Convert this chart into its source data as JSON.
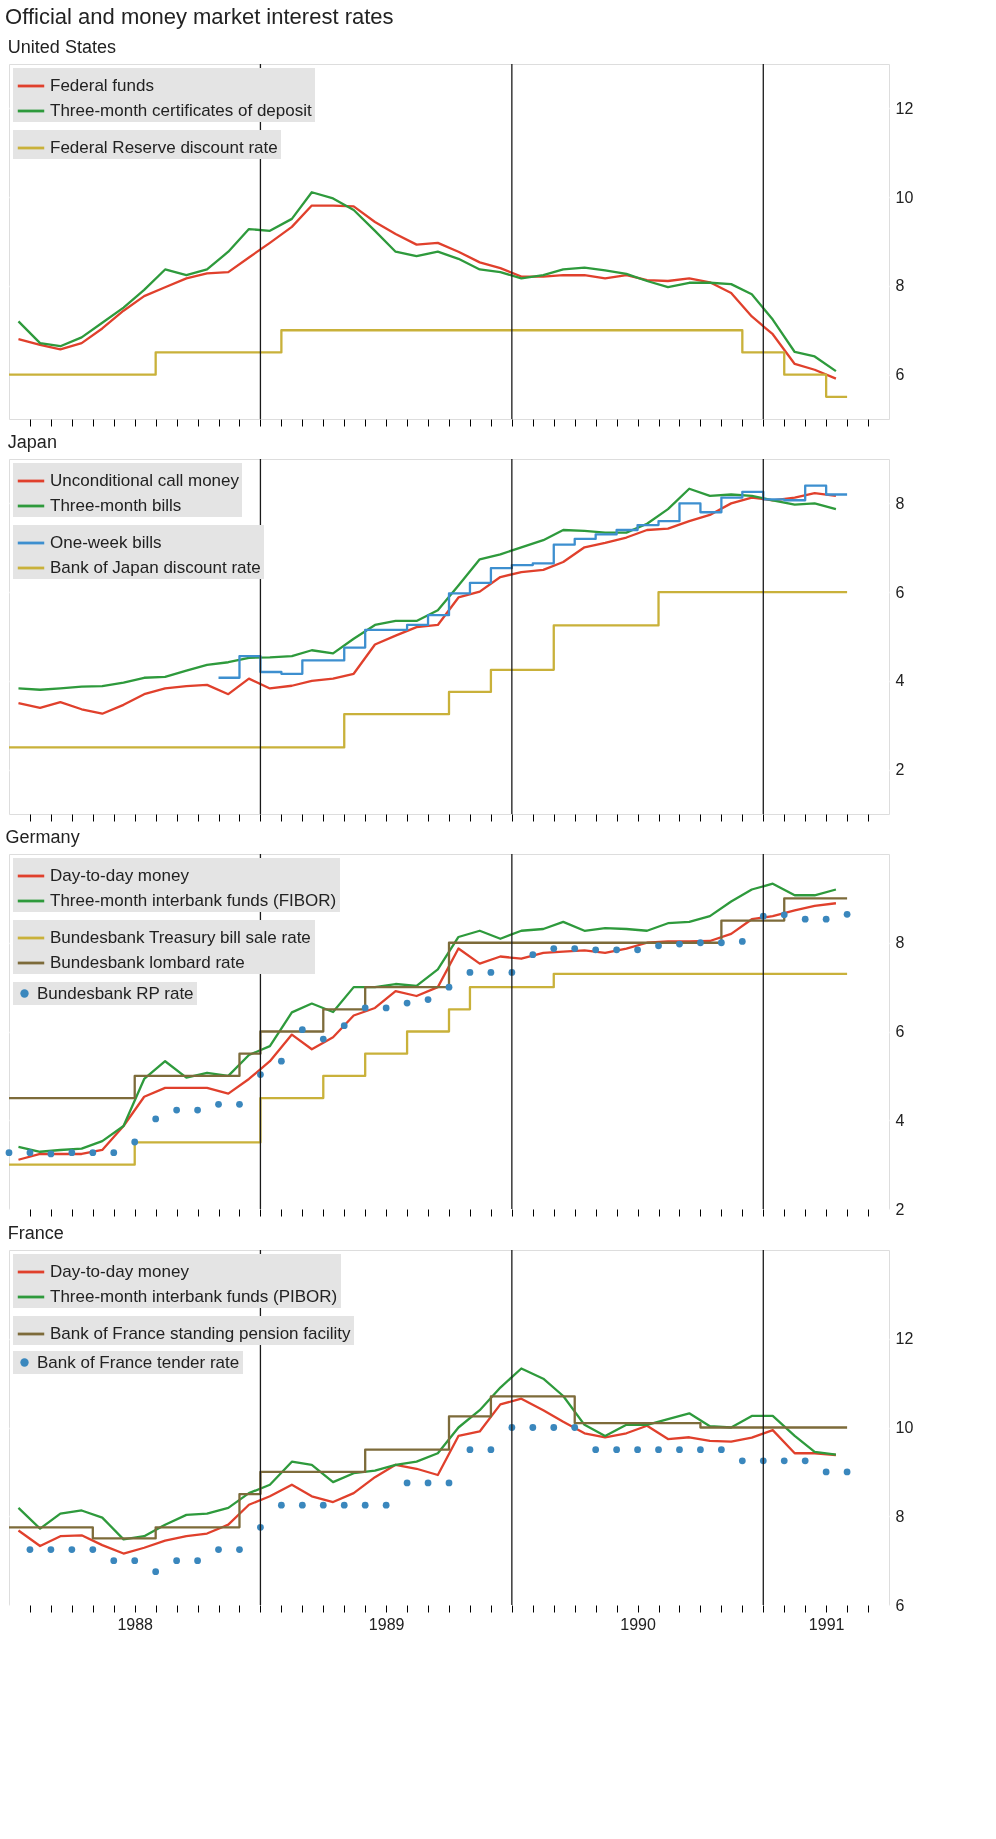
{
  "chart_data": [
    {
      "type": "line",
      "title": "Official and money market interest rates",
      "subtitle": "United States",
      "legend": "top left",
      "grid": "y",
      "tick_labels": "y",
      "xlim": [
        "1988-01",
        "1991-07"
      ],
      "ylim": [
        5,
        13
      ],
      "yticks": [
        6,
        8,
        10,
        12
      ],
      "xticks": [
        {
          "value": "1988-02",
          "label": null
        },
        {
          "value": "1988-03",
          "label": null
        },
        {
          "value": "1988-04",
          "label": null
        },
        {
          "value": "1988-05",
          "label": null
        },
        {
          "value": "1988-06",
          "label": null
        },
        {
          "value": "1988-07",
          "label": null
        },
        {
          "value": "1988-08",
          "label": null
        },
        {
          "value": "1988-09",
          "label": null
        },
        {
          "value": "1988-10",
          "label": null
        },
        {
          "value": "1988-11",
          "label": null
        },
        {
          "value": "1988-12",
          "label": null
        },
        {
          "value": "1989-01",
          "label": null
        },
        {
          "value": "1989-02",
          "label": null
        },
        {
          "value": "1989-03",
          "label": null
        },
        {
          "value": "1989-04",
          "label": null
        },
        {
          "value": "1989-05",
          "label": null
        },
        {
          "value": "1989-06",
          "label": null
        },
        {
          "value": "1989-07",
          "label": null
        },
        {
          "value": "1989-08",
          "label": null
        },
        {
          "value": "1989-09",
          "label": null
        },
        {
          "value": "1989-10",
          "label": null
        },
        {
          "value": "1989-11",
          "label": null
        },
        {
          "value": "1989-12",
          "label": null
        },
        {
          "value": "1990-01",
          "label": null
        },
        {
          "value": "1990-02",
          "label": null
        },
        {
          "value": "1990-03",
          "label": null
        },
        {
          "value": "1990-04",
          "label": null
        },
        {
          "value": "1990-05",
          "label": null
        },
        {
          "value": "1990-06",
          "label": null
        },
        {
          "value": "1990-07",
          "label": null
        },
        {
          "value": "1990-08",
          "label": null
        },
        {
          "value": "1990-09",
          "label": null
        },
        {
          "value": "1990-10",
          "label": null
        },
        {
          "value": "1990-11",
          "label": null
        },
        {
          "value": "1990-12",
          "label": null
        },
        {
          "value": "1991-01",
          "label": null
        },
        {
          "value": "1991-02",
          "label": null
        },
        {
          "value": "1991-03",
          "label": null
        },
        {
          "value": "1991-04",
          "label": null
        },
        {
          "value": "1991-05",
          "label": null
        },
        {
          "value": "1991-06",
          "label": null
        }
      ],
      "ref_lines": [
        {
          "axis": "x",
          "value": "1989-01",
          "color": "#1a1a1a"
        },
        {
          "axis": "x",
          "value": "1990-01",
          "color": "#1a1a1a"
        },
        {
          "axis": "x",
          "value": "1991-01",
          "color": "#1a1a1a"
        }
      ],
      "x": [
        "1988-01-15",
        "1988-02-15",
        "1988-03-15",
        "1988-04-15",
        "1988-05-15",
        "1988-06-15",
        "1988-07-15",
        "1988-08-15",
        "1988-09-15",
        "1988-10-15",
        "1988-11-15",
        "1988-12-15",
        "1989-01-15",
        "1989-02-15",
        "1989-03-15",
        "1989-04-15",
        "1989-05-15",
        "1989-06-15",
        "1989-07-15",
        "1989-08-15",
        "1989-09-15",
        "1989-10-15",
        "1989-11-15",
        "1989-12-15",
        "1990-01-15",
        "1990-02-15",
        "1990-03-15",
        "1990-04-15",
        "1990-05-15",
        "1990-06-15",
        "1990-07-15",
        "1990-08-15",
        "1990-09-15",
        "1990-10-15",
        "1990-11-15",
        "1990-12-15",
        "1991-01-15",
        "1991-02-15",
        "1991-03-15",
        "1991-04-15"
      ],
      "series": [
        {
          "name": "Federal funds",
          "color": "#e0402c",
          "values": [
            6.8,
            6.67,
            6.57,
            6.71,
            7.04,
            7.44,
            7.77,
            7.97,
            8.17,
            8.28,
            8.31,
            8.64,
            8.97,
            9.33,
            9.81,
            9.81,
            9.79,
            9.44,
            9.17,
            8.93,
            8.97,
            8.77,
            8.53,
            8.4,
            8.21,
            8.21,
            8.24,
            8.24,
            8.17,
            8.24,
            8.13,
            8.11,
            8.17,
            8.08,
            7.84,
            7.31,
            6.91,
            6.24,
            6.11,
            5.91
          ]
        },
        {
          "name": "Three-month certificates of deposit",
          "color": "#2e9a3c",
          "values": [
            7.2,
            6.71,
            6.64,
            6.84,
            7.17,
            7.51,
            7.91,
            8.37,
            8.24,
            8.37,
            8.77,
            9.28,
            9.24,
            9.51,
            10.11,
            9.97,
            9.71,
            9.24,
            8.77,
            8.67,
            8.77,
            8.61,
            8.37,
            8.31,
            8.17,
            8.24,
            8.37,
            8.41,
            8.35,
            8.27,
            8.11,
            7.97,
            8.07,
            8.07,
            8.04,
            7.81,
            7.24,
            6.51,
            6.41,
            6.08
          ]
        },
        {
          "name": "Federal Reserve discount rate",
          "type": "step",
          "color": "#c9b13a",
          "x": [
            "1988-01",
            "1988-08",
            "1989-02",
            "1990-12",
            "1991-02",
            "1991-04",
            "1991-05"
          ],
          "values": [
            6.0,
            6.5,
            7.0,
            6.5,
            6.0,
            5.5,
            5.5
          ]
        }
      ]
    },
    {
      "type": "line",
      "title": "Japan",
      "legend": "top left",
      "grid": "y",
      "tick_labels": "y",
      "xlim": [
        "1988-01",
        "1991-07"
      ],
      "ylim": [
        1,
        9
      ],
      "yticks": [
        2,
        4,
        6,
        8
      ],
      "xticks": [
        {
          "value": "1988-02",
          "label": null
        },
        {
          "value": "1988-03",
          "label": null
        },
        {
          "value": "1988-04",
          "label": null
        },
        {
          "value": "1988-05",
          "label": null
        },
        {
          "value": "1988-06",
          "label": null
        },
        {
          "value": "1988-07",
          "label": null
        },
        {
          "value": "1988-08",
          "label": null
        },
        {
          "value": "1988-09",
          "label": null
        },
        {
          "value": "1988-10",
          "label": null
        },
        {
          "value": "1988-11",
          "label": null
        },
        {
          "value": "1988-12",
          "label": null
        },
        {
          "value": "1989-01",
          "label": null
        },
        {
          "value": "1989-02",
          "label": null
        },
        {
          "value": "1989-03",
          "label": null
        },
        {
          "value": "1989-04",
          "label": null
        },
        {
          "value": "1989-05",
          "label": null
        },
        {
          "value": "1989-06",
          "label": null
        },
        {
          "value": "1989-07",
          "label": null
        },
        {
          "value": "1989-08",
          "label": null
        },
        {
          "value": "1989-09",
          "label": null
        },
        {
          "value": "1989-10",
          "label": null
        },
        {
          "value": "1989-11",
          "label": null
        },
        {
          "value": "1989-12",
          "label": null
        },
        {
          "value": "1990-01",
          "label": null
        },
        {
          "value": "1990-02",
          "label": null
        },
        {
          "value": "1990-03",
          "label": null
        },
        {
          "value": "1990-04",
          "label": null
        },
        {
          "value": "1990-05",
          "label": null
        },
        {
          "value": "1990-06",
          "label": null
        },
        {
          "value": "1990-07",
          "label": null
        },
        {
          "value": "1990-08",
          "label": null
        },
        {
          "value": "1990-09",
          "label": null
        },
        {
          "value": "1990-10",
          "label": null
        },
        {
          "value": "1990-11",
          "label": null
        },
        {
          "value": "1990-12",
          "label": null
        },
        {
          "value": "1991-01",
          "label": null
        },
        {
          "value": "1991-02",
          "label": null
        },
        {
          "value": "1991-03",
          "label": null
        },
        {
          "value": "1991-04",
          "label": null
        },
        {
          "value": "1991-05",
          "label": null
        },
        {
          "value": "1991-06",
          "label": null
        }
      ],
      "ref_lines": [
        {
          "axis": "x",
          "value": "1989-01",
          "color": "#1a1a1a"
        },
        {
          "axis": "x",
          "value": "1990-01",
          "color": "#1a1a1a"
        },
        {
          "axis": "x",
          "value": "1991-01",
          "color": "#1a1a1a"
        }
      ],
      "x": [
        "1988-01-15",
        "1988-02-15",
        "1988-03-15",
        "1988-04-15",
        "1988-05-15",
        "1988-06-15",
        "1988-07-15",
        "1988-08-15",
        "1988-09-15",
        "1988-10-15",
        "1988-11-15",
        "1988-12-15",
        "1989-01-15",
        "1989-02-15",
        "1989-03-15",
        "1989-04-15",
        "1989-05-15",
        "1989-06-15",
        "1989-07-15",
        "1989-08-15",
        "1989-09-15",
        "1989-10-15",
        "1989-11-15",
        "1989-12-15",
        "1990-01-15",
        "1990-02-15",
        "1990-03-15",
        "1990-04-15",
        "1990-05-15",
        "1990-06-15",
        "1990-07-15",
        "1990-08-15",
        "1990-09-15",
        "1990-10-15",
        "1990-11-15",
        "1990-12-15",
        "1991-01-15",
        "1991-02-15",
        "1991-03-15",
        "1991-04-15"
      ],
      "series": [
        {
          "name": "Unconditional call money",
          "color": "#e0402c",
          "values": [
            3.5,
            3.39,
            3.52,
            3.36,
            3.26,
            3.46,
            3.7,
            3.83,
            3.88,
            3.91,
            3.7,
            4.05,
            3.83,
            3.89,
            4.0,
            4.05,
            4.16,
            4.82,
            5.02,
            5.21,
            5.26,
            5.88,
            6.01,
            6.34,
            6.45,
            6.5,
            6.68,
            7.01,
            7.11,
            7.23,
            7.4,
            7.43,
            7.6,
            7.74,
            8.0,
            8.13,
            8.07,
            8.13,
            8.23,
            8.17
          ]
        },
        {
          "name": "Three-month bills",
          "color": "#2e9a3c",
          "values": [
            3.83,
            3.8,
            3.83,
            3.87,
            3.88,
            3.96,
            4.07,
            4.09,
            4.23,
            4.36,
            4.42,
            4.52,
            4.53,
            4.56,
            4.69,
            4.62,
            4.95,
            5.26,
            5.35,
            5.35,
            5.59,
            6.15,
            6.74,
            6.85,
            7.01,
            7.17,
            7.4,
            7.38,
            7.34,
            7.34,
            7.54,
            7.87,
            8.33,
            8.17,
            8.2,
            8.17,
            8.07,
            7.97,
            8.0,
            7.87
          ]
        },
        {
          "name": "One-week bills",
          "type": "step",
          "color": "#3d8fcf",
          "x": [
            "1988-11",
            "1988-12",
            "1989-01",
            "1989-02",
            "1989-03",
            "1989-04",
            "1989-05",
            "1989-06",
            "1989-07",
            "1989-08",
            "1989-09",
            "1989-10",
            "1989-11",
            "1989-12",
            "1990-01",
            "1990-02",
            "1990-03",
            "1990-04",
            "1990-05",
            "1990-06",
            "1990-07",
            "1990-08",
            "1990-09",
            "1990-10",
            "1990-11",
            "1990-12",
            "1991-01",
            "1991-02",
            "1991-03",
            "1991-04",
            "1991-05"
          ],
          "values": [
            4.07,
            4.56,
            4.2,
            4.16,
            4.46,
            4.46,
            4.75,
            5.15,
            5.15,
            5.26,
            5.48,
            5.97,
            6.21,
            6.54,
            6.61,
            6.65,
            7.07,
            7.2,
            7.3,
            7.4,
            7.51,
            7.6,
            8.0,
            7.8,
            8.13,
            8.26,
            8.09,
            8.07,
            8.4,
            8.2,
            8.2
          ]
        },
        {
          "name": "Bank of Japan discount rate",
          "type": "step",
          "color": "#c9b13a",
          "x": [
            "1988-01",
            "1989-05",
            "1989-10",
            "1989-12",
            "1990-03",
            "1990-08",
            "1991-05"
          ],
          "values": [
            2.5,
            3.25,
            3.75,
            4.25,
            5.25,
            6.0,
            6.0
          ]
        }
      ]
    },
    {
      "type": "line",
      "title": "Germany",
      "legend": "top left",
      "grid": "y",
      "tick_labels": "y",
      "xlim": [
        "1988-01",
        "1991-07"
      ],
      "ylim": [
        2,
        10
      ],
      "yticks": [
        2,
        4,
        6,
        8
      ],
      "xticks": [
        {
          "value": "1988-02",
          "label": null
        },
        {
          "value": "1988-03",
          "label": null
        },
        {
          "value": "1988-04",
          "label": null
        },
        {
          "value": "1988-05",
          "label": null
        },
        {
          "value": "1988-06",
          "label": null
        },
        {
          "value": "1988-07",
          "label": null
        },
        {
          "value": "1988-08",
          "label": null
        },
        {
          "value": "1988-09",
          "label": null
        },
        {
          "value": "1988-10",
          "label": null
        },
        {
          "value": "1988-11",
          "label": null
        },
        {
          "value": "1988-12",
          "label": null
        },
        {
          "value": "1989-01",
          "label": null
        },
        {
          "value": "1989-02",
          "label": null
        },
        {
          "value": "1989-03",
          "label": null
        },
        {
          "value": "1989-04",
          "label": null
        },
        {
          "value": "1989-05",
          "label": null
        },
        {
          "value": "1989-06",
          "label": null
        },
        {
          "value": "1989-07",
          "label": null
        },
        {
          "value": "1989-08",
          "label": null
        },
        {
          "value": "1989-09",
          "label": null
        },
        {
          "value": "1989-10",
          "label": null
        },
        {
          "value": "1989-11",
          "label": null
        },
        {
          "value": "1989-12",
          "label": null
        },
        {
          "value": "1990-01",
          "label": null
        },
        {
          "value": "1990-02",
          "label": null
        },
        {
          "value": "1990-03",
          "label": null
        },
        {
          "value": "1990-04",
          "label": null
        },
        {
          "value": "1990-05",
          "label": null
        },
        {
          "value": "1990-06",
          "label": null
        },
        {
          "value": "1990-07",
          "label": null
        },
        {
          "value": "1990-08",
          "label": null
        },
        {
          "value": "1990-09",
          "label": null
        },
        {
          "value": "1990-10",
          "label": null
        },
        {
          "value": "1990-11",
          "label": null
        },
        {
          "value": "1990-12",
          "label": null
        },
        {
          "value": "1991-01",
          "label": null
        },
        {
          "value": "1991-02",
          "label": null
        },
        {
          "value": "1991-03",
          "label": null
        },
        {
          "value": "1991-04",
          "label": null
        },
        {
          "value": "1991-05",
          "label": null
        },
        {
          "value": "1991-06",
          "label": null
        }
      ],
      "ref_lines": [
        {
          "axis": "x",
          "value": "1989-01",
          "color": "#1a1a1a"
        },
        {
          "axis": "x",
          "value": "1990-01",
          "color": "#1a1a1a"
        },
        {
          "axis": "x",
          "value": "1991-01",
          "color": "#1a1a1a"
        }
      ],
      "x": [
        "1988-01-15",
        "1988-02-15",
        "1988-03-15",
        "1988-04-15",
        "1988-05-15",
        "1988-06-15",
        "1988-07-15",
        "1988-08-15",
        "1988-09-15",
        "1988-10-15",
        "1988-11-15",
        "1988-12-15",
        "1989-01-15",
        "1989-02-15",
        "1989-03-15",
        "1989-04-15",
        "1989-05-15",
        "1989-06-15",
        "1989-07-15",
        "1989-08-15",
        "1989-09-15",
        "1989-10-15",
        "1989-11-15",
        "1989-12-15",
        "1990-01-15",
        "1990-02-15",
        "1990-03-15",
        "1990-04-15",
        "1990-05-15",
        "1990-06-15",
        "1990-07-15",
        "1990-08-15",
        "1990-09-15",
        "1990-10-15",
        "1990-11-15",
        "1990-12-15",
        "1991-01-15",
        "1991-02-15",
        "1991-03-15",
        "1991-04-15"
      ],
      "series": [
        {
          "name": "Day-to-day money",
          "color": "#e0402c",
          "values": [
            3.11,
            3.24,
            3.24,
            3.24,
            3.33,
            3.87,
            4.53,
            4.73,
            4.73,
            4.73,
            4.6,
            4.93,
            5.33,
            5.93,
            5.6,
            5.87,
            6.36,
            6.53,
            6.91,
            6.8,
            7.0,
            7.87,
            7.53,
            7.69,
            7.64,
            7.77,
            7.8,
            7.83,
            7.77,
            7.87,
            8.0,
            8.03,
            8.03,
            8.04,
            8.2,
            8.53,
            8.6,
            8.73,
            8.83,
            8.89
          ]
        },
        {
          "name": "Three-month interbank funds (FIBOR)",
          "color": "#2e9a3c",
          "values": [
            3.4,
            3.29,
            3.33,
            3.36,
            3.53,
            3.87,
            4.93,
            5.33,
            4.96,
            5.07,
            5.0,
            5.47,
            5.67,
            6.43,
            6.63,
            6.44,
            7.0,
            7.0,
            7.07,
            7.03,
            7.4,
            8.13,
            8.27,
            8.09,
            8.27,
            8.31,
            8.47,
            8.27,
            8.33,
            8.31,
            8.27,
            8.44,
            8.47,
            8.6,
            8.93,
            9.2,
            9.33,
            9.07,
            9.07,
            9.2
          ]
        },
        {
          "name": "Bundesbank Treasury bill sale rate",
          "type": "step",
          "color": "#c9b13a",
          "x": [
            "1988-01",
            "1988-07",
            "1989-01",
            "1989-04",
            "1989-06",
            "1989-08",
            "1989-10",
            "1989-11",
            "1990-03",
            "1991-05"
          ],
          "values": [
            3.0,
            3.5,
            4.5,
            5.0,
            5.5,
            6.0,
            6.5,
            7.0,
            7.3,
            7.3
          ]
        },
        {
          "name": "Bundesbank lombard rate",
          "type": "step",
          "color": "#7d6b3a",
          "x": [
            "1988-01",
            "1988-07",
            "1988-12",
            "1989-01",
            "1989-04",
            "1989-06",
            "1989-10",
            "1990-11",
            "1991-02",
            "1991-05"
          ],
          "values": [
            4.5,
            5.0,
            5.5,
            6.0,
            6.5,
            7.0,
            8.0,
            8.5,
            9.0,
            9.0
          ]
        },
        {
          "name": "Bundesbank RP rate",
          "type": "scatter",
          "color": "#3a87bd",
          "x": [
            "1988-01",
            "1988-02",
            "1988-03",
            "1988-04",
            "1988-05",
            "1988-06",
            "1988-07",
            "1988-08",
            "1988-09",
            "1988-10",
            "1988-11",
            "1988-12",
            "1989-01",
            "1989-02",
            "1989-03",
            "1989-04",
            "1989-05",
            "1989-06",
            "1989-07",
            "1989-08",
            "1989-09",
            "1989-10",
            "1989-11",
            "1989-12",
            "1990-01",
            "1990-02",
            "1990-03",
            "1990-04",
            "1990-05",
            "1990-06",
            "1990-07",
            "1990-08",
            "1990-09",
            "1990-10",
            "1990-11",
            "1990-12",
            "1991-01",
            "1991-02",
            "1991-03",
            "1991-04",
            "1991-05"
          ],
          "values": [
            3.27,
            3.27,
            3.24,
            3.27,
            3.27,
            3.27,
            3.51,
            4.03,
            4.23,
            4.23,
            4.36,
            4.36,
            5.03,
            5.33,
            6.04,
            5.83,
            6.13,
            6.53,
            6.53,
            6.64,
            6.72,
            7.0,
            7.33,
            7.33,
            7.33,
            7.73,
            7.87,
            7.87,
            7.84,
            7.84,
            7.84,
            7.93,
            7.97,
            8.0,
            8.0,
            8.03,
            8.6,
            8.63,
            8.53,
            8.53,
            8.64
          ]
        }
      ]
    },
    {
      "type": "line",
      "title": "France",
      "legend": "top left",
      "grid": "y",
      "xlim": [
        "1988-01",
        "1991-07"
      ],
      "ylim": [
        6,
        14
      ],
      "yticks": [
        6,
        8,
        10,
        12
      ],
      "xticks": [
        {
          "value": "1988-02",
          "label": null
        },
        {
          "value": "1988-03",
          "label": null
        },
        {
          "value": "1988-04",
          "label": null
        },
        {
          "value": "1988-05",
          "label": null
        },
        {
          "value": "1988-06",
          "label": null
        },
        {
          "value": "1988-07",
          "label": "1988"
        },
        {
          "value": "1988-08",
          "label": null
        },
        {
          "value": "1988-09",
          "label": null
        },
        {
          "value": "1988-10",
          "label": null
        },
        {
          "value": "1988-11",
          "label": null
        },
        {
          "value": "1988-12",
          "label": null
        },
        {
          "value": "1989-01",
          "label": null
        },
        {
          "value": "1989-02",
          "label": null
        },
        {
          "value": "1989-03",
          "label": null
        },
        {
          "value": "1989-04",
          "label": null
        },
        {
          "value": "1989-05",
          "label": null
        },
        {
          "value": "1989-06",
          "label": null
        },
        {
          "value": "1989-07",
          "label": "1989"
        },
        {
          "value": "1989-08",
          "label": null
        },
        {
          "value": "1989-09",
          "label": null
        },
        {
          "value": "1989-10",
          "label": null
        },
        {
          "value": "1989-11",
          "label": null
        },
        {
          "value": "1989-12",
          "label": null
        },
        {
          "value": "1990-01",
          "label": null
        },
        {
          "value": "1990-02",
          "label": null
        },
        {
          "value": "1990-03",
          "label": null
        },
        {
          "value": "1990-04",
          "label": null
        },
        {
          "value": "1990-05",
          "label": null
        },
        {
          "value": "1990-06",
          "label": null
        },
        {
          "value": "1990-07",
          "label": "1990"
        },
        {
          "value": "1990-08",
          "label": null
        },
        {
          "value": "1990-09",
          "label": null
        },
        {
          "value": "1990-10",
          "label": null
        },
        {
          "value": "1990-11",
          "label": null
        },
        {
          "value": "1990-12",
          "label": null
        },
        {
          "value": "1991-01",
          "label": null
        },
        {
          "value": "1991-02",
          "label": null
        },
        {
          "value": "1991-03",
          "label": null
        },
        {
          "value": "1991-04",
          "label": "1991"
        },
        {
          "value": "1991-05",
          "label": null
        },
        {
          "value": "1991-06",
          "label": null
        }
      ],
      "ref_lines": [
        {
          "axis": "x",
          "value": "1989-01",
          "color": "#1a1a1a"
        },
        {
          "axis": "x",
          "value": "1990-01",
          "color": "#1a1a1a"
        },
        {
          "axis": "x",
          "value": "1991-01",
          "color": "#1a1a1a"
        }
      ],
      "x": [
        "1988-01-15",
        "1988-02-15",
        "1988-03-15",
        "1988-04-15",
        "1988-05-15",
        "1988-06-15",
        "1988-07-15",
        "1988-08-15",
        "1988-09-15",
        "1988-10-15",
        "1988-11-15",
        "1988-12-15",
        "1989-01-15",
        "1989-02-15",
        "1989-03-15",
        "1989-04-15",
        "1989-05-15",
        "1989-06-15",
        "1989-07-15",
        "1989-08-15",
        "1989-09-15",
        "1989-10-15",
        "1989-11-15",
        "1989-12-15",
        "1990-01-15",
        "1990-02-15",
        "1990-03-15",
        "1990-04-15",
        "1990-05-15",
        "1990-06-15",
        "1990-07-15",
        "1990-08-15",
        "1990-09-15",
        "1990-10-15",
        "1990-11-15",
        "1990-12-15",
        "1991-01-15",
        "1991-02-15",
        "1991-03-15",
        "1991-04-15"
      ],
      "series": [
        {
          "name": "Day-to-day money",
          "color": "#e0402c",
          "values": [
            7.68,
            7.33,
            7.55,
            7.57,
            7.35,
            7.16,
            7.29,
            7.45,
            7.55,
            7.61,
            7.81,
            8.26,
            8.45,
            8.71,
            8.45,
            8.32,
            8.52,
            8.88,
            9.16,
            9.07,
            8.93,
            9.81,
            9.91,
            10.52,
            10.65,
            10.39,
            10.13,
            9.87,
            9.78,
            9.87,
            10.04,
            9.74,
            9.78,
            9.7,
            9.68,
            9.77,
            9.94,
            9.42,
            9.42,
            9.38
          ]
        },
        {
          "name": "Three-month interbank funds (PIBOR)",
          "color": "#2e9a3c",
          "values": [
            8.19,
            7.72,
            8.06,
            8.13,
            7.97,
            7.48,
            7.55,
            7.81,
            8.03,
            8.06,
            8.19,
            8.52,
            8.71,
            9.23,
            9.16,
            8.77,
            8.97,
            9.03,
            9.16,
            9.23,
            9.42,
            10.0,
            10.39,
            10.9,
            11.33,
            11.1,
            10.71,
            10.06,
            9.81,
            10.06,
            10.06,
            10.19,
            10.32,
            10.03,
            10.0,
            10.26,
            10.26,
            9.81,
            9.45,
            9.39
          ]
        },
        {
          "name": "Bank of France standing pension facility",
          "type": "step",
          "color": "#7d6b3a",
          "x": [
            "1988-01",
            "1988-05",
            "1988-08",
            "1988-12",
            "1989-01",
            "1989-06",
            "1989-10",
            "1989-12",
            "1990-04",
            "1990-10",
            "1991-05"
          ],
          "values": [
            7.75,
            7.5,
            7.75,
            8.5,
            9.0,
            9.5,
            10.25,
            10.7,
            10.1,
            10.0,
            10.0
          ]
        },
        {
          "name": "Bank of France tender rate",
          "type": "scatter",
          "color": "#3a87bd",
          "x": [
            "1988-02",
            "1988-03",
            "1988-04",
            "1988-05",
            "1988-06",
            "1988-07",
            "1988-08",
            "1988-09",
            "1988-10",
            "1988-11",
            "1988-12",
            "1989-01",
            "1989-02",
            "1989-03",
            "1989-04",
            "1989-05",
            "1989-06",
            "1989-07",
            "1989-08",
            "1989-09",
            "1989-10",
            "1989-11",
            "1989-12",
            "1990-01",
            "1990-02",
            "1990-03",
            "1990-04",
            "1990-05",
            "1990-06",
            "1990-07",
            "1990-08",
            "1990-09",
            "1990-10",
            "1990-11",
            "1990-12",
            "1991-01",
            "1991-02",
            "1991-03",
            "1991-04",
            "1991-05"
          ],
          "values": [
            7.25,
            7.25,
            7.25,
            7.25,
            7.0,
            7.0,
            6.75,
            7.0,
            7.0,
            7.25,
            7.25,
            7.75,
            8.25,
            8.25,
            8.25,
            8.25,
            8.25,
            8.25,
            8.75,
            8.75,
            8.75,
            9.5,
            9.5,
            10.0,
            10.0,
            10.0,
            10.0,
            9.5,
            9.5,
            9.5,
            9.5,
            9.5,
            9.5,
            9.5,
            9.25,
            9.25,
            9.25,
            9.25,
            9.0,
            9.0
          ]
        }
      ]
    }
  ]
}
